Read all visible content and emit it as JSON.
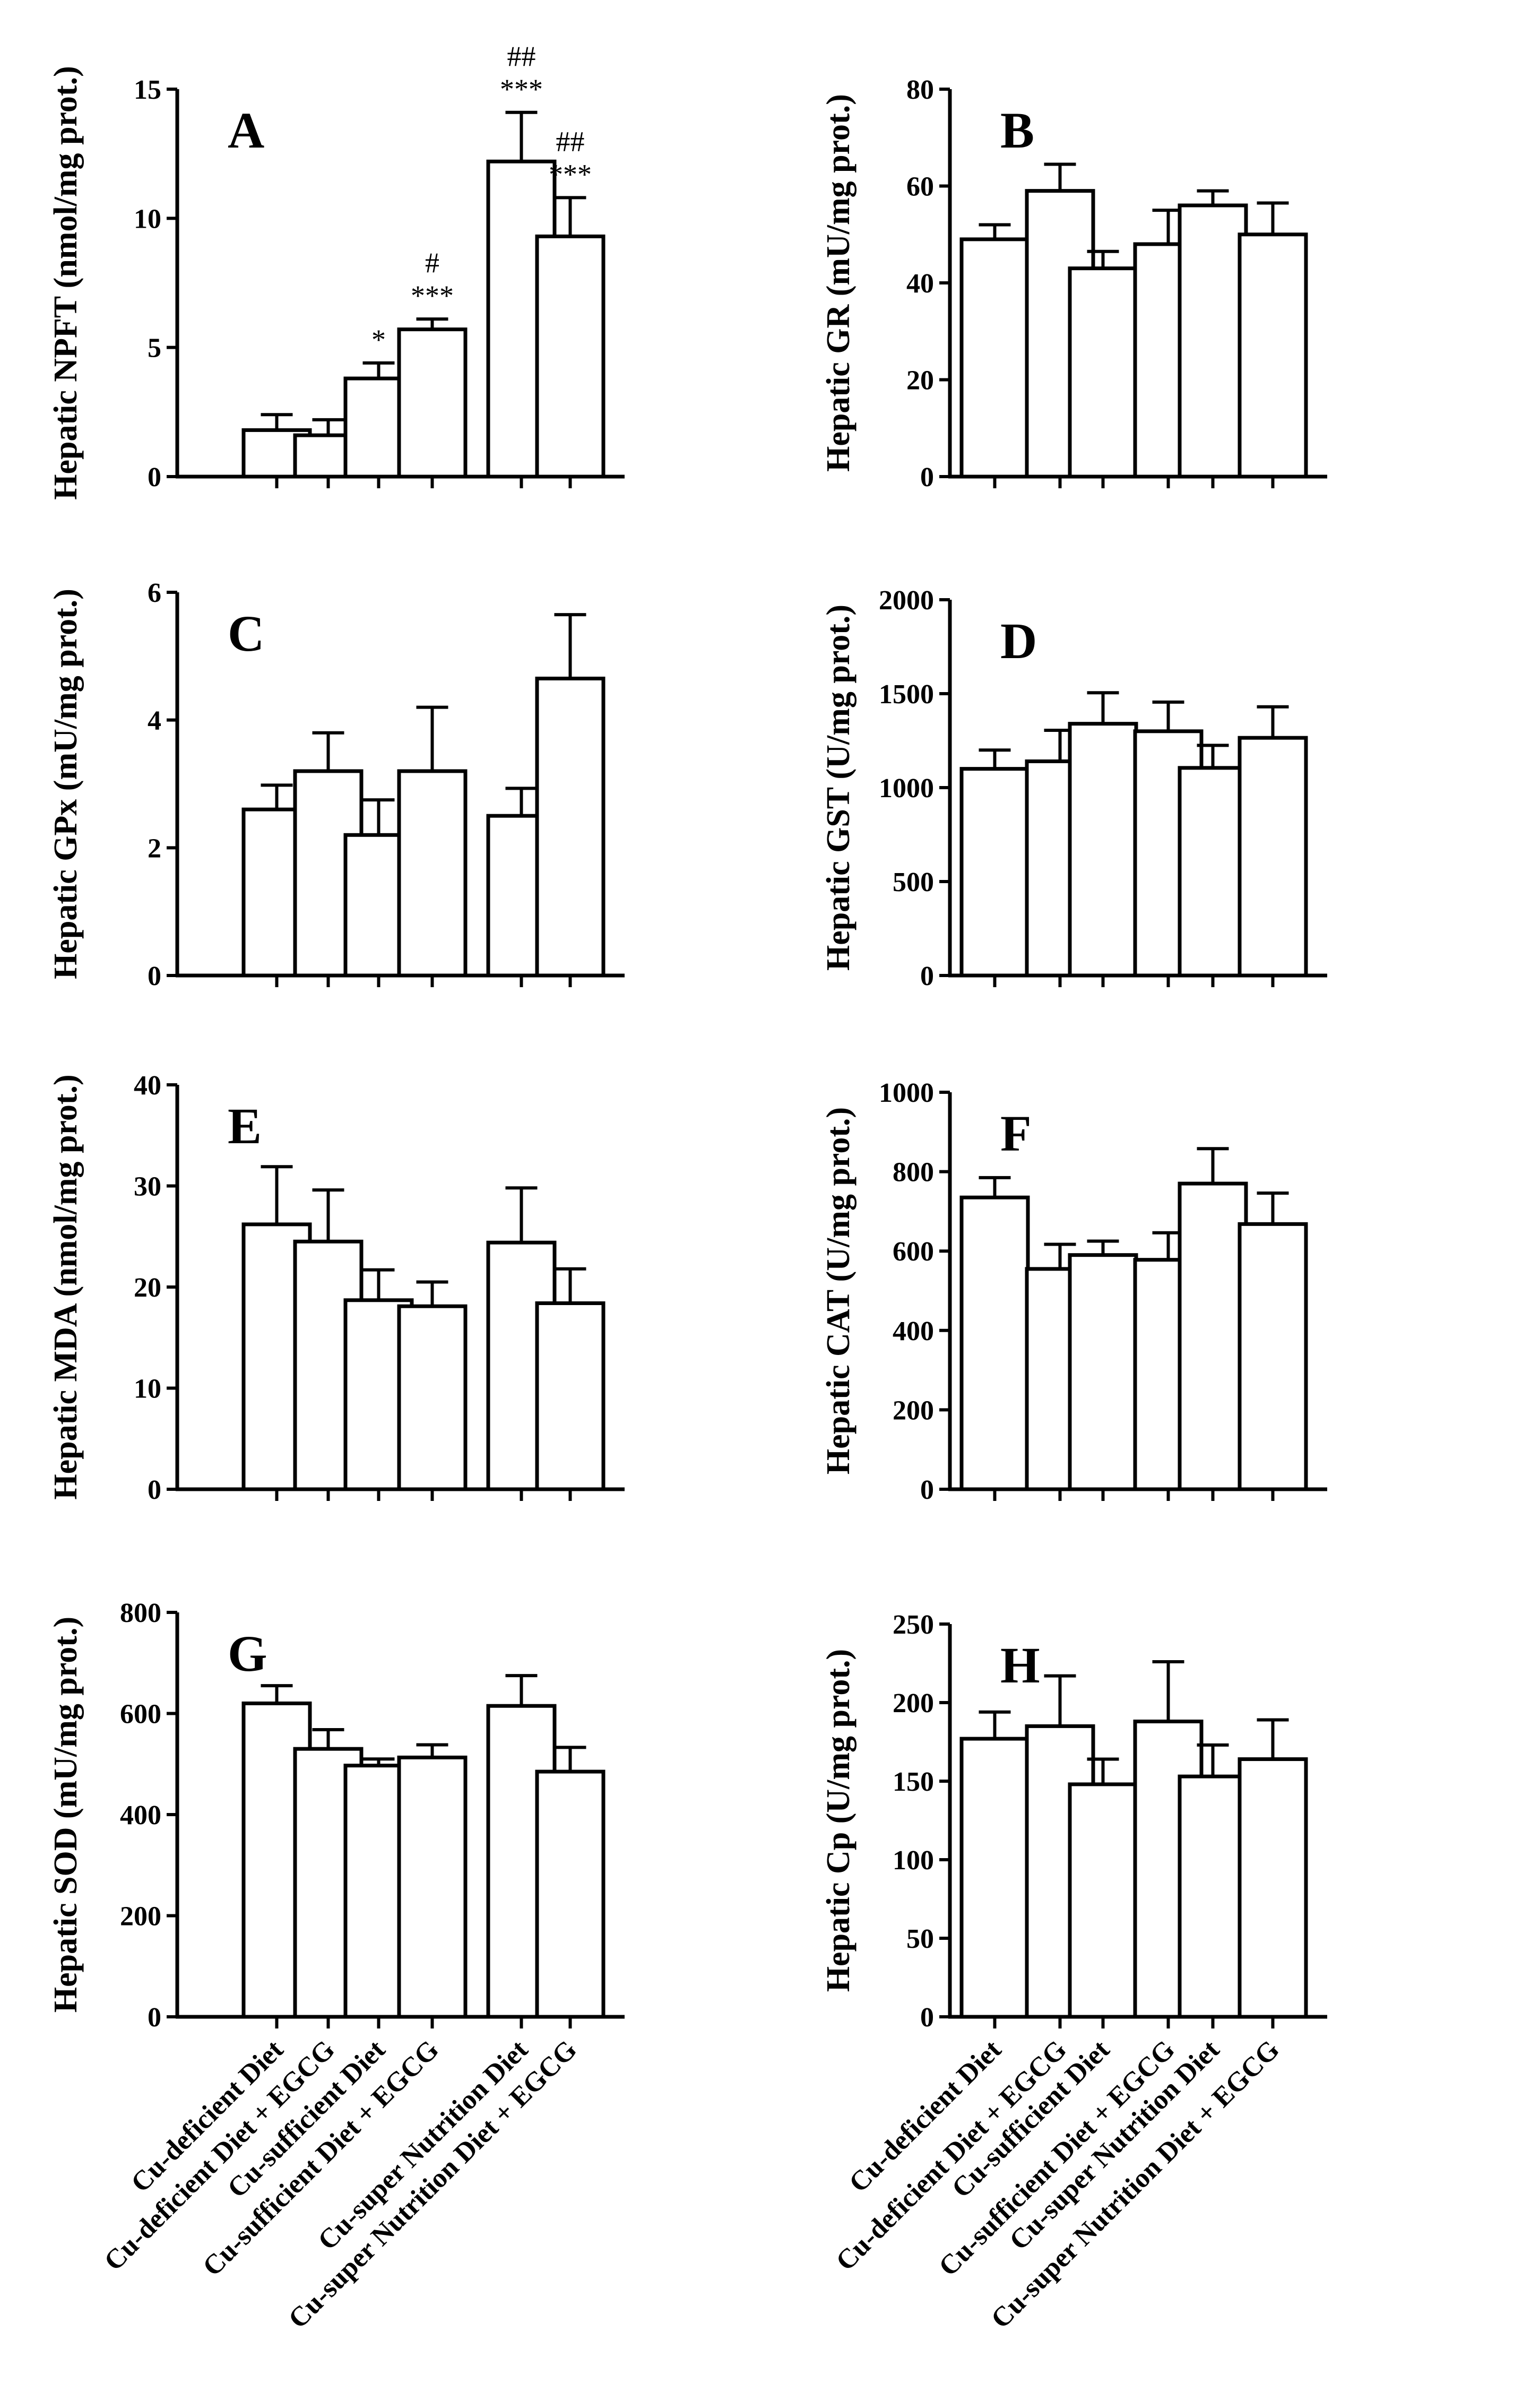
{
  "figure": {
    "categories": [
      "Cu-deficient Diet",
      "Cu-deficient Diet + EGCG",
      "Cu-sufficient Diet",
      "Cu-sufficient Diet + EGCG",
      "Cu-super Nutrition Diet",
      "Cu-super Nutrition Diet + EGCG"
    ]
  },
  "chart_data": [
    {
      "panel": "A",
      "type": "bar",
      "ylabel": "Hepatic NPFT (nmol/mg prot.)",
      "ylim": [
        0,
        15
      ],
      "yticks": [
        0,
        5,
        10,
        15
      ],
      "values": [
        1.8,
        1.6,
        3.8,
        5.7,
        12.2,
        9.3
      ],
      "errors": [
        0.6,
        0.6,
        0.6,
        0.4,
        1.9,
        1.5
      ],
      "annotations": [
        {
          "bar": 2,
          "lines": [
            "*"
          ]
        },
        {
          "bar": 3,
          "lines": [
            "#",
            "***"
          ]
        },
        {
          "bar": 4,
          "lines": [
            "##",
            "***"
          ]
        },
        {
          "bar": 5,
          "lines": [
            "##",
            "***"
          ]
        }
      ]
    },
    {
      "panel": "B",
      "type": "bar",
      "ylabel": "Hepatic GR (mU/mg prot.)",
      "ylim": [
        0,
        80
      ],
      "yticks": [
        0,
        20,
        40,
        60,
        80
      ],
      "values": [
        49,
        59,
        43,
        48,
        56,
        50
      ],
      "errors": [
        3,
        5.5,
        3.5,
        7,
        3,
        6.5
      ],
      "annotations": []
    },
    {
      "panel": "C",
      "type": "bar",
      "ylabel": "Hepatic GPx (mU/mg prot.)",
      "ylim": [
        0,
        6
      ],
      "yticks": [
        0,
        2,
        4,
        6
      ],
      "values": [
        2.6,
        3.2,
        2.2,
        3.2,
        2.5,
        4.65
      ],
      "errors": [
        0.38,
        0.6,
        0.55,
        1.0,
        0.43,
        1.0
      ],
      "annotations": []
    },
    {
      "panel": "D",
      "type": "bar",
      "ylabel": "Hepatic GST (U/mg prot.)",
      "ylim": [
        0,
        2000
      ],
      "yticks": [
        0,
        500,
        1000,
        1500,
        2000
      ],
      "values": [
        1100,
        1140,
        1340,
        1300,
        1105,
        1265
      ],
      "errors": [
        100,
        165,
        165,
        155,
        120,
        165
      ],
      "annotations": []
    },
    {
      "panel": "E",
      "type": "bar",
      "ylabel": "Hepatic MDA (nmol/mg prot.)",
      "ylim": [
        0,
        40
      ],
      "yticks": [
        0,
        10,
        20,
        30,
        40
      ],
      "values": [
        26.2,
        24.5,
        18.7,
        18.1,
        24.4,
        18.4
      ],
      "errors": [
        5.7,
        5.1,
        3.0,
        2.4,
        5.4,
        3.4
      ],
      "annotations": []
    },
    {
      "panel": "F",
      "type": "bar",
      "ylabel": "Hepatic CAT (U/mg prot.)",
      "ylim": [
        0,
        1000
      ],
      "yticks": [
        0,
        200,
        400,
        600,
        800,
        1000
      ],
      "values": [
        735,
        555,
        590,
        578,
        770,
        668
      ],
      "errors": [
        50,
        62,
        35,
        68,
        88,
        78
      ],
      "annotations": []
    },
    {
      "panel": "G",
      "type": "bar",
      "ylabel": "Hepatic SOD (mU/mg prot.)",
      "ylim": [
        0,
        800
      ],
      "yticks": [
        0,
        200,
        400,
        600,
        800
      ],
      "values": [
        620,
        530,
        497,
        513,
        615,
        485
      ],
      "errors": [
        35,
        38,
        13,
        25,
        60,
        48
      ],
      "annotations": []
    },
    {
      "panel": "H",
      "type": "bar",
      "ylabel": "Hepatic Cp (U/mg prot.)",
      "ylim": [
        0,
        250
      ],
      "yticks": [
        0,
        50,
        100,
        150,
        200,
        250
      ],
      "values": [
        177,
        185,
        148,
        188,
        153,
        164
      ],
      "errors": [
        17,
        32,
        16,
        38,
        20,
        25
      ],
      "annotations": []
    }
  ]
}
